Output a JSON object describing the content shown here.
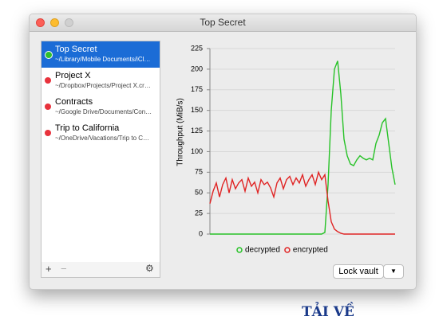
{
  "window": {
    "title": "Top Secret"
  },
  "vaults": [
    {
      "name": "Top Secret",
      "path": "~/Library/Mobile Documents/iCl…",
      "status_color": "#2dbf2d",
      "selected": true
    },
    {
      "name": "Project X",
      "path": "~/Dropbox/Projects/Project X.cr…",
      "status_color": "#e8323c",
      "selected": false
    },
    {
      "name": "Contracts",
      "path": "~/Google Drive/Documents/Con…",
      "status_color": "#e8323c",
      "selected": false
    },
    {
      "name": "Trip to California",
      "path": "~/OneDrive/Vacations/Trip to C…",
      "status_color": "#e8323c",
      "selected": false
    }
  ],
  "toolbar": {
    "add": "+",
    "remove": "−"
  },
  "buttons": {
    "lock": "Lock vault"
  },
  "watermark": "TẢI VỀ",
  "chart_data": {
    "type": "line",
    "y_label": "Throughput (MiB/s)",
    "ylim": [
      0,
      225
    ],
    "yticks": [
      0,
      25,
      50,
      75,
      100,
      125,
      150,
      175,
      200,
      225
    ],
    "grid": true,
    "series": [
      {
        "name": "decrypted",
        "color": "#27c227",
        "values": [
          0,
          0,
          0,
          0,
          0,
          0,
          0,
          0,
          0,
          0,
          0,
          0,
          0,
          0,
          0,
          0,
          0,
          0,
          0,
          0,
          0,
          0,
          0,
          0,
          0,
          0,
          0,
          0,
          0,
          0,
          0,
          0,
          0,
          0,
          0,
          0,
          2,
          60,
          150,
          200,
          210,
          170,
          115,
          95,
          85,
          83,
          90,
          95,
          92,
          90,
          92,
          90,
          110,
          120,
          135,
          140,
          110,
          80,
          60
        ]
      },
      {
        "name": "encrypted",
        "color": "#e02424",
        "values": [
          37,
          52,
          62,
          45,
          60,
          68,
          50,
          66,
          55,
          62,
          66,
          52,
          68,
          58,
          63,
          50,
          66,
          60,
          63,
          56,
          45,
          62,
          68,
          55,
          66,
          70,
          60,
          68,
          62,
          72,
          58,
          66,
          72,
          60,
          75,
          66,
          72,
          40,
          15,
          6,
          3,
          1,
          0,
          0,
          0,
          0,
          0,
          0,
          0,
          0,
          0,
          0,
          0,
          0,
          0,
          0,
          0,
          0,
          0
        ]
      }
    ]
  }
}
